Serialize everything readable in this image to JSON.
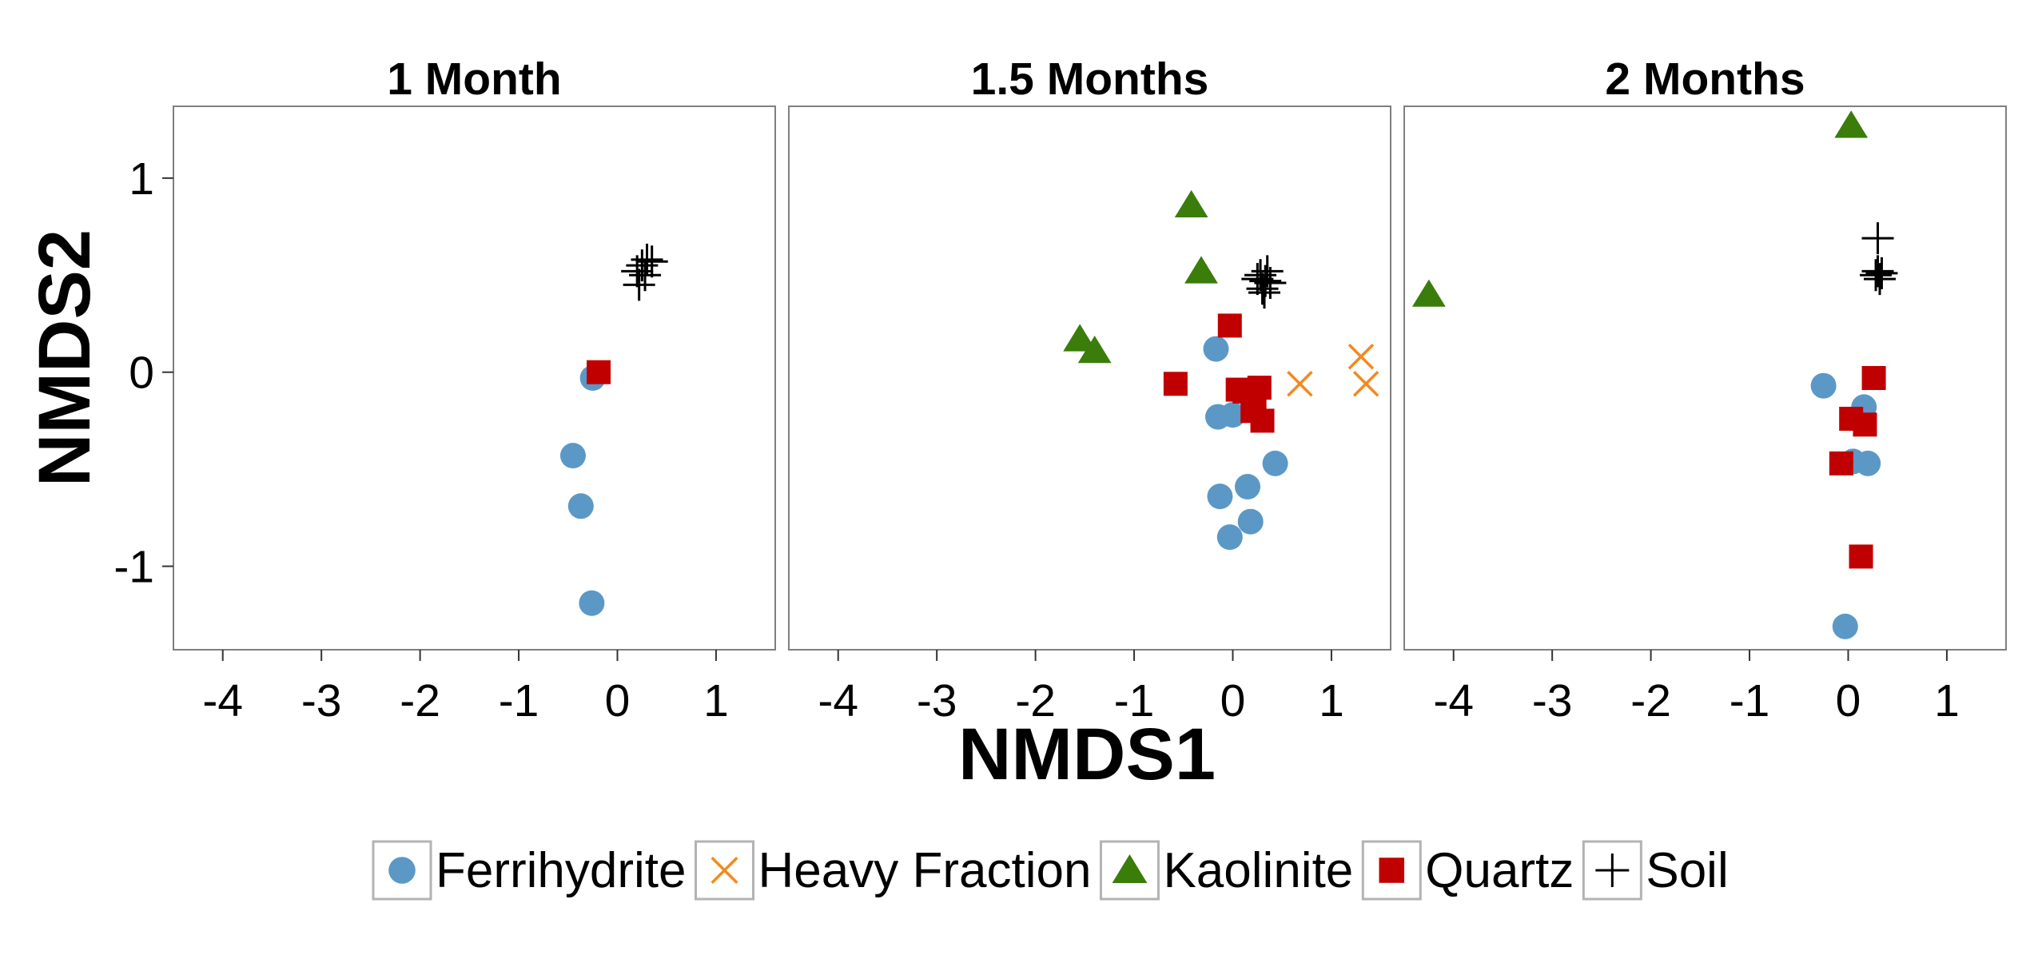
{
  "chart_data": {
    "type": "scatter",
    "xlabel": "NMDS1",
    "ylabel": "NMDS2",
    "xlim": [
      -4.5,
      1.6
    ],
    "ylim": [
      -1.43,
      1.37
    ],
    "xticks": [
      -4,
      -3,
      -2,
      -1,
      0,
      1
    ],
    "xtick_labels": [
      "-4",
      "-3",
      "-2",
      "-1",
      "0",
      "1"
    ],
    "yticks": [
      1,
      0,
      -1
    ],
    "ytick_labels": [
      "1",
      "0",
      "-1"
    ],
    "grid": false,
    "legend_position": "bottom",
    "legend": [
      {
        "name": "Ferrihydrite",
        "shape": "circle",
        "color": "#5B98C6"
      },
      {
        "name": "Heavy Fraction",
        "shape": "x",
        "color": "#F28A1E"
      },
      {
        "name": "Kaolinite",
        "shape": "triangle",
        "color": "#3A7D0A"
      },
      {
        "name": "Quartz",
        "shape": "square",
        "color": "#C00000"
      },
      {
        "name": "Soil",
        "shape": "plus",
        "color": "#000000"
      }
    ],
    "panels": [
      {
        "title": "1 Month",
        "series": [
          {
            "name": "Ferrihydrite",
            "points": [
              [
                -0.25,
                -0.03
              ],
              [
                -0.45,
                -0.43
              ],
              [
                -0.37,
                -0.69
              ],
              [
                -0.26,
                -1.19
              ]
            ]
          },
          {
            "name": "Heavy Fraction",
            "points": []
          },
          {
            "name": "Kaolinite",
            "points": []
          },
          {
            "name": "Quartz",
            "points": [
              [
                -0.19,
                0.0
              ]
            ]
          },
          {
            "name": "Soil",
            "points": [
              [
                0.25,
                0.55
              ],
              [
                0.28,
                0.5
              ],
              [
                0.22,
                0.45
              ],
              [
                0.3,
                0.58
              ],
              [
                0.2,
                0.52
              ],
              [
                0.35,
                0.57
              ]
            ]
          }
        ]
      },
      {
        "title": "1.5 Months",
        "series": [
          {
            "name": "Ferrihydrite",
            "points": [
              [
                -0.17,
                0.12
              ],
              [
                -0.15,
                -0.23
              ],
              [
                0.0,
                -0.22
              ],
              [
                0.15,
                -0.59
              ],
              [
                0.18,
                -0.77
              ],
              [
                -0.13,
                -0.64
              ],
              [
                -0.03,
                -0.85
              ],
              [
                0.43,
                -0.47
              ]
            ]
          },
          {
            "name": "Heavy Fraction",
            "points": [
              [
                0.68,
                -0.06
              ],
              [
                1.3,
                0.08
              ],
              [
                1.35,
                -0.06
              ]
            ]
          },
          {
            "name": "Kaolinite",
            "points": [
              [
                -0.42,
                0.86
              ],
              [
                -0.32,
                0.52
              ],
              [
                -1.55,
                0.17
              ],
              [
                -1.4,
                0.11
              ]
            ]
          },
          {
            "name": "Quartz",
            "points": [
              [
                -0.03,
                0.24
              ],
              [
                -0.58,
                -0.06
              ],
              [
                0.05,
                -0.09
              ],
              [
                0.12,
                -0.1
              ],
              [
                0.27,
                -0.08
              ],
              [
                0.2,
                -0.2
              ],
              [
                0.3,
                -0.25
              ],
              [
                0.22,
                -0.17
              ]
            ]
          },
          {
            "name": "Soil",
            "points": [
              [
                0.28,
                0.5
              ],
              [
                0.33,
                0.47
              ],
              [
                0.3,
                0.43
              ],
              [
                0.35,
                0.52
              ],
              [
                0.25,
                0.48
              ],
              [
                0.38,
                0.46
              ],
              [
                0.32,
                0.41
              ]
            ]
          }
        ]
      },
      {
        "title": "2 Months",
        "series": [
          {
            "name": "Ferrihydrite",
            "points": [
              [
                -0.25,
                -0.07
              ],
              [
                0.16,
                -0.18
              ],
              [
                0.05,
                -0.46
              ],
              [
                0.2,
                -0.47
              ],
              [
                -0.03,
                -1.31
              ]
            ]
          },
          {
            "name": "Heavy Fraction",
            "points": []
          },
          {
            "name": "Kaolinite",
            "points": [
              [
                0.03,
                1.27
              ],
              [
                -4.25,
                0.4
              ]
            ]
          },
          {
            "name": "Quartz",
            "points": [
              [
                0.26,
                -0.03
              ],
              [
                0.03,
                -0.24
              ],
              [
                0.17,
                -0.27
              ],
              [
                -0.07,
                -0.47
              ],
              [
                0.13,
                -0.95
              ]
            ]
          },
          {
            "name": "Soil",
            "points": [
              [
                0.3,
                0.69
              ],
              [
                0.3,
                0.52
              ],
              [
                0.32,
                0.48
              ],
              [
                0.28,
                0.5
              ],
              [
                0.34,
                0.51
              ]
            ]
          }
        ]
      }
    ]
  }
}
